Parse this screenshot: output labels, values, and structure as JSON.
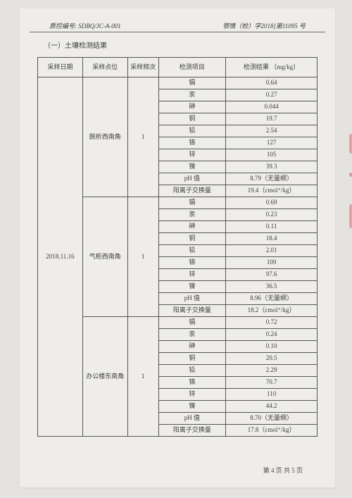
{
  "header": {
    "left": "质控编号: SDBQ/JC-A-001",
    "right": "鄂情（检）字2018]第11095 号"
  },
  "section_title": "（一）土壤检测结果",
  "columns": {
    "date": "采样日期",
    "location": "采样点位",
    "freq": "采样频次",
    "item": "检测项目",
    "result": "检测结果\n（mg/kg）"
  },
  "sample_date": "2018.11.16",
  "groups": [
    {
      "location": "脱析西南角",
      "freq": "1",
      "rows": [
        {
          "item": "镉",
          "result": "0.64"
        },
        {
          "item": "汞",
          "result": "0.27"
        },
        {
          "item": "砷",
          "result": "0.044"
        },
        {
          "item": "铜",
          "result": "19.7"
        },
        {
          "item": "铅",
          "result": "2.54"
        },
        {
          "item": "铬",
          "result": "127"
        },
        {
          "item": "锌",
          "result": "105"
        },
        {
          "item": "镍",
          "result": "39.3"
        },
        {
          "item": "pH 值",
          "result": "8.79（无量纲）"
        },
        {
          "item": "阳离子交换量",
          "result": "19.4（cmol⁺/kg）"
        }
      ]
    },
    {
      "location": "气柜西南角",
      "freq": "1",
      "rows": [
        {
          "item": "镉",
          "result": "0.69"
        },
        {
          "item": "汞",
          "result": "0.23"
        },
        {
          "item": "砷",
          "result": "0.11"
        },
        {
          "item": "铜",
          "result": "18.4"
        },
        {
          "item": "铅",
          "result": "2.01"
        },
        {
          "item": "铬",
          "result": "109"
        },
        {
          "item": "锌",
          "result": "97.6"
        },
        {
          "item": "镍",
          "result": "36.5"
        },
        {
          "item": "pH 值",
          "result": "8.96（无量纲）"
        },
        {
          "item": "阳离子交换量",
          "result": "18.2（cmol⁺/kg）"
        }
      ]
    },
    {
      "location": "办公楼东南角",
      "freq": "1",
      "rows": [
        {
          "item": "镉",
          "result": "0.72"
        },
        {
          "item": "汞",
          "result": "0.24"
        },
        {
          "item": "砷",
          "result": "0.10"
        },
        {
          "item": "铜",
          "result": "20.5"
        },
        {
          "item": "铅",
          "result": "2.29"
        },
        {
          "item": "铬",
          "result": "70.7"
        },
        {
          "item": "锌",
          "result": "110"
        },
        {
          "item": "镍",
          "result": "44.2"
        },
        {
          "item": "pH 值",
          "result": "8.70（无量纲）"
        },
        {
          "item": "阳离子交换量",
          "result": "17.8（cmol⁺/kg）"
        }
      ]
    }
  ],
  "footer": "第 4 页  共 5 页"
}
